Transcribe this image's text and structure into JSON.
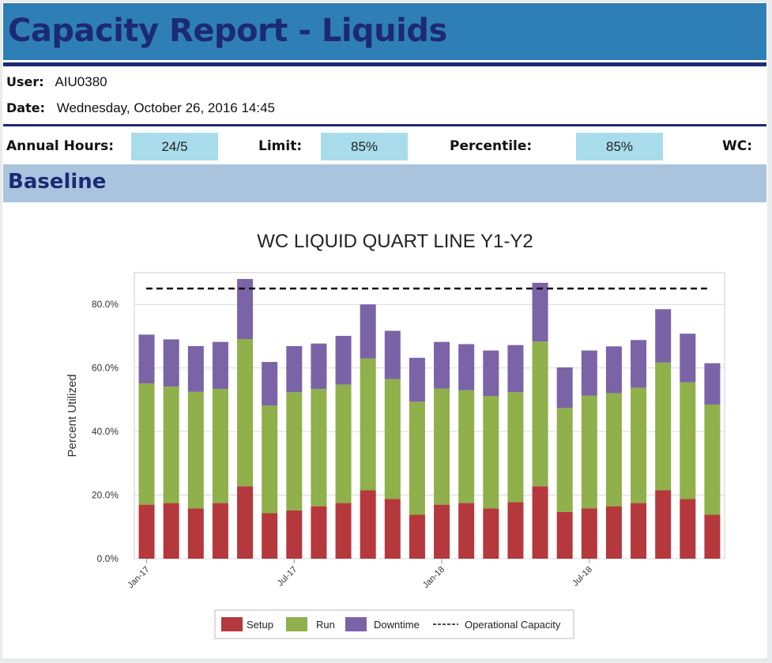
{
  "report": {
    "title": "Capacity Report - Liquids",
    "user_label": "User:",
    "user_value": "AIU0380",
    "date_label": "Date:",
    "date_value": "Wednesday, October 26, 2016 14:45",
    "annual_hours_label": "Annual Hours:",
    "annual_hours_value": "24/5",
    "limit_label": "Limit:",
    "limit_value": "85%",
    "percentile_label": "Percentile:",
    "percentile_value": "85%",
    "wc_label": "WC:",
    "section_title": "Baseline"
  },
  "colors": {
    "setup": "#b5383c",
    "run": "#8fb04a",
    "downtime": "#7a63a6",
    "capacity_line": "#111111"
  },
  "chart_data": {
    "type": "bar",
    "stacked": true,
    "title": "WC LIQUID QUART LINE Y1-Y2",
    "xlabel": "",
    "ylabel": "Percent Utilized",
    "ylim": [
      0,
      0.9
    ],
    "yticks": [
      0,
      0.2,
      0.4,
      0.6,
      0.8
    ],
    "ytick_labels": [
      "0.0%",
      "20.0%",
      "40.0%",
      "60.0%",
      "80.0%"
    ],
    "xtick_labels": [
      {
        "label": "Jan-17",
        "bar_index": 0
      },
      {
        "label": "Jul-17",
        "bar_index": 6
      },
      {
        "label": "Jan-18",
        "bar_index": 12
      },
      {
        "label": "Jul-18",
        "bar_index": 18
      }
    ],
    "series": [
      {
        "name": "Setup",
        "color_key": "setup",
        "values": [
          0.17,
          0.175,
          0.158,
          0.175,
          0.228,
          0.143,
          0.152,
          0.165,
          0.175,
          0.215,
          0.188,
          0.138,
          0.17,
          0.175,
          0.158,
          0.178,
          0.228,
          0.147,
          0.158,
          0.165,
          0.175,
          0.215,
          0.188,
          0.138
        ]
      },
      {
        "name": "Run",
        "color_key": "run",
        "values": [
          0.382,
          0.367,
          0.367,
          0.359,
          0.463,
          0.339,
          0.372,
          0.369,
          0.373,
          0.415,
          0.377,
          0.356,
          0.365,
          0.355,
          0.354,
          0.346,
          0.455,
          0.327,
          0.355,
          0.356,
          0.363,
          0.402,
          0.367,
          0.347
        ]
      },
      {
        "name": "Downtime",
        "color_key": "downtime",
        "values": [
          0.153,
          0.148,
          0.144,
          0.148,
          0.189,
          0.137,
          0.145,
          0.143,
          0.153,
          0.17,
          0.152,
          0.138,
          0.147,
          0.145,
          0.143,
          0.148,
          0.185,
          0.128,
          0.142,
          0.147,
          0.15,
          0.168,
          0.153,
          0.13
        ]
      }
    ],
    "reference_line": {
      "name": "Operational Capacity",
      "value": 0.85,
      "style": "dashed"
    },
    "legend": {
      "placement": "bottom-center"
    },
    "grid": true
  }
}
